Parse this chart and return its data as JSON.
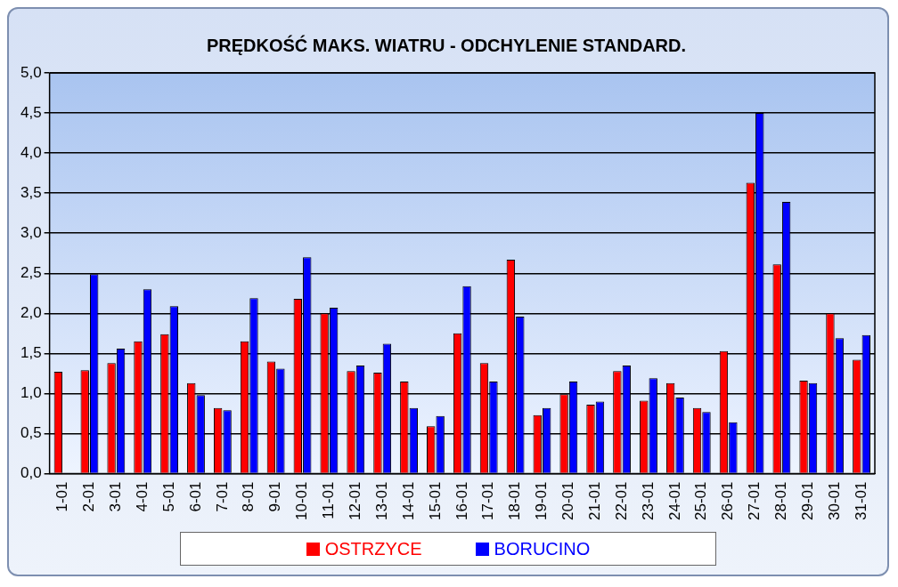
{
  "chart_data": {
    "type": "bar",
    "title": "PRĘDKOŚĆ MAKS. WIATRU - ODCHYLENIE STANDARD.",
    "categories": [
      "1-01",
      "2-01",
      "3-01",
      "4-01",
      "5-01",
      "6-01",
      "7-01",
      "8-01",
      "9-01",
      "10-01",
      "11-01",
      "12-01",
      "13-01",
      "14-01",
      "15-01",
      "16-01",
      "17-01",
      "18-01",
      "19-01",
      "20-01",
      "21-01",
      "22-01",
      "23-01",
      "24-01",
      "25-01",
      "26-01",
      "27-01",
      "28-01",
      "29-01",
      "30-01",
      "31-01"
    ],
    "series": [
      {
        "name": "OSTRZYCE",
        "color": "#ff0000",
        "values": [
          1.27,
          1.29,
          1.38,
          1.65,
          1.74,
          1.13,
          0.82,
          1.65,
          1.4,
          2.18,
          2.0,
          1.28,
          1.26,
          1.15,
          0.59,
          1.75,
          1.38,
          2.67,
          0.73,
          0.99,
          0.86,
          1.28,
          0.91,
          1.13,
          0.82,
          1.53,
          3.63,
          2.61,
          1.16,
          2.0,
          1.42
        ]
      },
      {
        "name": "BORUCINO",
        "color": "#0000ff",
        "values": [
          null,
          2.49,
          1.56,
          2.3,
          2.09,
          0.98,
          0.79,
          2.19,
          1.31,
          2.7,
          2.07,
          1.35,
          1.62,
          0.82,
          0.72,
          2.34,
          1.15,
          1.96,
          0.82,
          1.15,
          0.9,
          1.35,
          1.19,
          0.95,
          0.77,
          0.64,
          4.5,
          3.39,
          1.13,
          1.69,
          1.73
        ]
      }
    ],
    "ylim": [
      0,
      5
    ],
    "yticks": [
      {
        "value": 0,
        "label": "0,0"
      },
      {
        "value": 0.5,
        "label": "0,5"
      },
      {
        "value": 1,
        "label": "1,0"
      },
      {
        "value": 1.5,
        "label": "1,5"
      },
      {
        "value": 2,
        "label": "2,0"
      },
      {
        "value": 2.5,
        "label": "2,5"
      },
      {
        "value": 3,
        "label": "3,0"
      },
      {
        "value": 3.5,
        "label": "3,5"
      },
      {
        "value": 4,
        "label": "4,0"
      },
      {
        "value": 4.5,
        "label": "4,5"
      },
      {
        "value": 5,
        "label": "5,0"
      }
    ],
    "grid": "y",
    "legend": "bottom"
  }
}
